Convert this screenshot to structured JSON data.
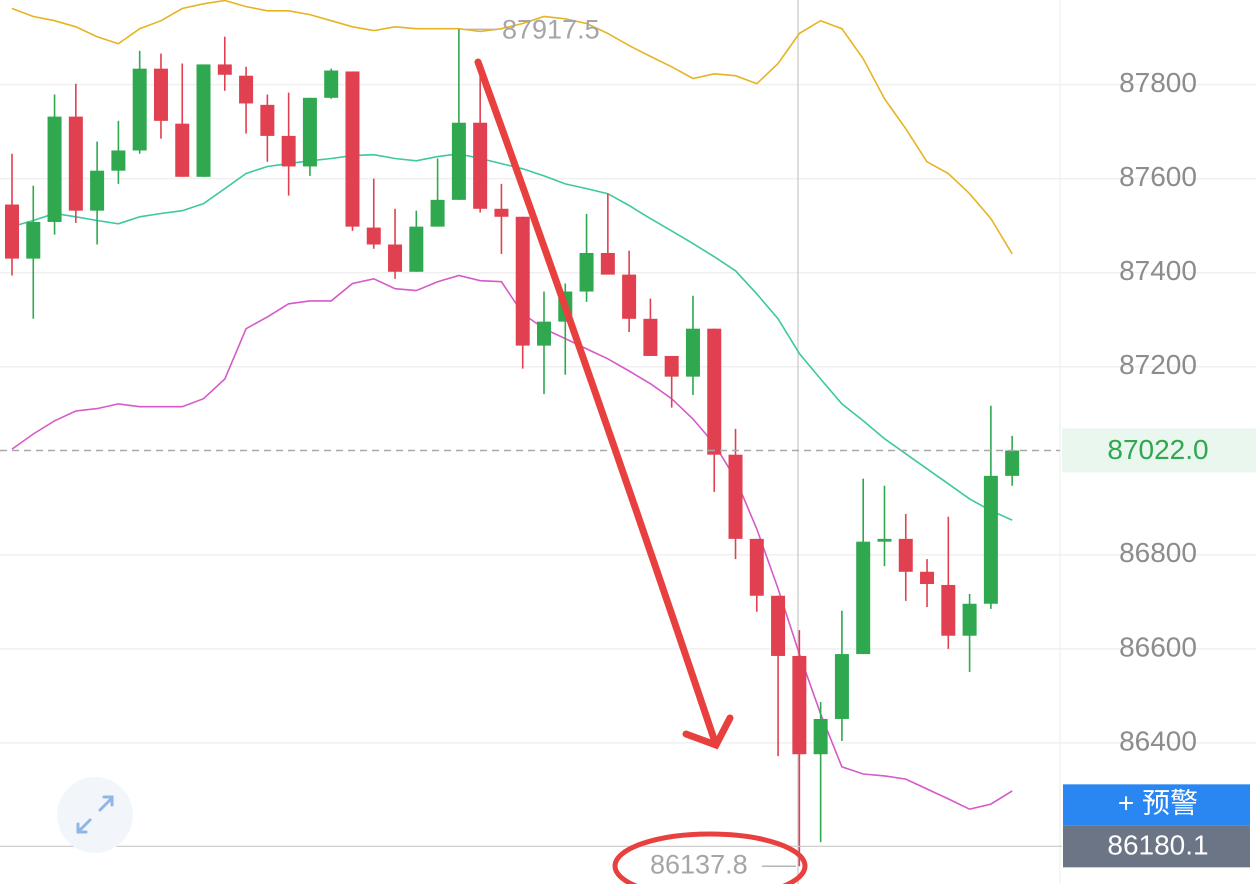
{
  "chart_data": {
    "type": "candlestick",
    "up_color": "#2fa84f",
    "down_color": "#e0404f",
    "open": [
      87545,
      87430,
      87508,
      87732,
      87532,
      87617,
      87660,
      87834,
      87717,
      87604,
      87843,
      87819,
      87757,
      87691,
      87626,
      87772,
      87828,
      87496,
      87460,
      87402,
      87498,
      87555,
      87719,
      87536,
      87519,
      87245,
      87296,
      87360,
      87442,
      87396,
      87302,
      87223,
      87179,
      87281,
      87013,
      86834,
      86713,
      86585,
      86376,
      86451,
      86589,
      86828,
      86834,
      86764,
      86736,
      86628,
      86696,
      86968
    ],
    "high": [
      87653,
      87585,
      87779,
      87802,
      87679,
      87723,
      87872,
      87866,
      87845,
      87843,
      87902,
      87838,
      87779,
      87783,
      87772,
      87834,
      87828,
      87600,
      87536,
      87532,
      87643,
      87917.5,
      87851,
      87589,
      87519,
      87360,
      87377,
      87525,
      87568,
      87447,
      87345,
      87223,
      87351,
      87281,
      87068,
      86834,
      86713,
      86640,
      86487,
      86681,
      86962,
      86947,
      86887,
      86791,
      86881,
      86717,
      87117,
      87053
    ],
    "low": [
      87394,
      87302,
      87481,
      87506,
      87460,
      87589,
      87653,
      87685,
      87604,
      87604,
      87787,
      87696,
      87636,
      87564,
      87606,
      87770,
      87489,
      87451,
      87387,
      87402,
      87498,
      87555,
      87528,
      87440,
      87196,
      87142,
      87183,
      87338,
      87396,
      87274,
      87223,
      87113,
      87140,
      86934,
      86791,
      86679,
      86372,
      86137.8,
      86189,
      86404,
      86589,
      86776,
      86702,
      86689,
      86600,
      86551,
      86685,
      86947
    ],
    "close": [
      87430,
      87508,
      87732,
      87532,
      87617,
      87660,
      87834,
      87723,
      87604,
      87843,
      87821,
      87760,
      87691,
      87626,
      87772,
      87830,
      87498,
      87460,
      87402,
      87498,
      87555,
      87719,
      87536,
      87519,
      87245,
      87296,
      87360,
      87442,
      87396,
      87302,
      87223,
      87179,
      87281,
      87013,
      86834,
      86713,
      86585,
      86376,
      86451,
      86589,
      86828,
      86834,
      86764,
      86738,
      86628,
      86696,
      86968,
      87022.0
    ],
    "bands": [
      {
        "color": "#e6b422",
        "values": [
          87962,
          87945,
          87936,
          87923,
          87902,
          87887,
          87919,
          87936,
          87962,
          87972,
          87979,
          87966,
          87957,
          87957,
          87949,
          87936,
          87923,
          87915,
          87923,
          87919,
          87919,
          87919,
          87913,
          87919,
          87930,
          87945,
          87940,
          87930,
          87909,
          87883,
          87860,
          87838,
          87813,
          87823,
          87819,
          87802,
          87845,
          87909,
          87936,
          87919,
          87855,
          87770,
          87706,
          87636,
          87611,
          87568,
          87515,
          87440
        ]
      },
      {
        "color": "#3cc9a0",
        "values": [
          87498,
          87511,
          87526,
          87519,
          87511,
          87504,
          87519,
          87526,
          87532,
          87547,
          87579,
          87611,
          87626,
          87632,
          87638,
          87643,
          87649,
          87651,
          87643,
          87638,
          87647,
          87653,
          87643,
          87632,
          87621,
          87606,
          87589,
          87579,
          87568,
          87543,
          87515,
          87489,
          87462,
          87434,
          87404,
          87355,
          87302,
          87228,
          87174,
          87121,
          87085,
          87047,
          87015,
          86983,
          86951,
          86919,
          86894,
          86874
        ]
      },
      {
        "color": "#d65ac8",
        "values": [
          87025,
          87057,
          87085,
          87106,
          87111,
          87121,
          87115,
          87115,
          87115,
          87132,
          87174,
          87281,
          87306,
          87334,
          87340,
          87340,
          87377,
          87387,
          87366,
          87362,
          87381,
          87394,
          87383,
          87381,
          87313,
          87281,
          87260,
          87238,
          87217,
          87191,
          87164,
          87132,
          87089,
          87036,
          86962,
          86855,
          86728,
          86589,
          86462,
          86349,
          86334,
          86330,
          86323,
          86302,
          86281,
          86259,
          86270,
          86298
        ]
      }
    ],
    "ylim": [
      86100,
      87980
    ],
    "yticks": [
      86400,
      86600,
      86800,
      87200,
      87400,
      87600,
      87800
    ],
    "grid": true,
    "last_price": {
      "value": 87022,
      "label": "87022.0"
    },
    "high_mark": 87917.5,
    "low_mark": 86137.8,
    "crosshair_price": 86180.1,
    "alert_button": "+ 预警"
  }
}
